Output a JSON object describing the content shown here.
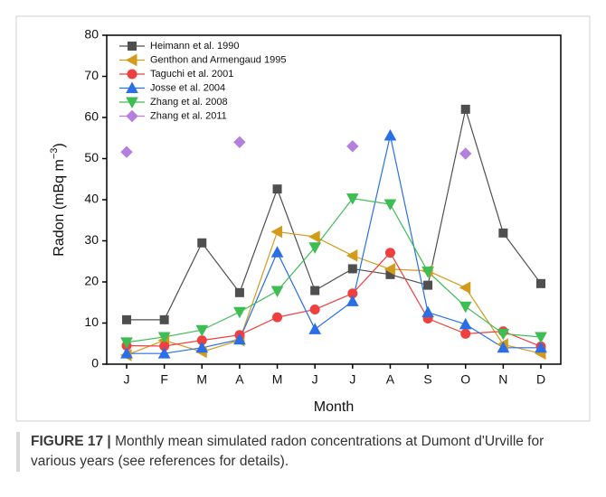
{
  "chart_data": {
    "type": "line",
    "xlabel": "Month",
    "ylabel_parts": [
      "Radon (mBq m",
      "−3",
      ")"
    ],
    "categories": [
      "J",
      "F",
      "M",
      "A",
      "M",
      "J",
      "J",
      "A",
      "S",
      "O",
      "N",
      "D"
    ],
    "ylim": [
      0,
      80
    ],
    "yticks": [
      0,
      10,
      20,
      30,
      40,
      50,
      60,
      70,
      80
    ],
    "legend": "upper-left",
    "series": [
      {
        "name": "Heimann et al. 1990",
        "color": "#4f4f4f",
        "marker": "square",
        "line": true,
        "values": [
          10.8,
          10.8,
          29.5,
          17.4,
          42.6,
          17.9,
          23.2,
          21.8,
          19.2,
          62,
          31.9,
          19.6
        ]
      },
      {
        "name": "Genthon and Armengaud 1995",
        "color": "#d39b1c",
        "marker": "triangle-left",
        "line": true,
        "values": [
          2.2,
          5.8,
          3.0,
          5.8,
          32.2,
          31,
          26.4,
          23.1,
          22.7,
          18.6,
          4.8,
          2.6
        ]
      },
      {
        "name": "Taguchi et al. 2001",
        "color": "#ef3f3f",
        "marker": "circle",
        "line": true,
        "values": [
          4.5,
          4.4,
          5.8,
          7.1,
          11.4,
          13.3,
          17.2,
          27.1,
          11.1,
          7.4,
          8,
          4.3
        ]
      },
      {
        "name": "Josse et al. 2004",
        "color": "#2a6fe6",
        "marker": "triangle-up",
        "line": true,
        "values": [
          2.6,
          2.6,
          4.0,
          6.0,
          27.2,
          8.5,
          15.3,
          55.6,
          12.6,
          9.7,
          4.0,
          4.0
        ]
      },
      {
        "name": "Zhang et al. 2008",
        "color": "#3dbd52",
        "marker": "triangle-down",
        "line": true,
        "values": [
          5.3,
          6.6,
          8.3,
          12.7,
          17.8,
          28.4,
          40.3,
          38.9,
          22.5,
          14.0,
          7.4,
          6.6
        ]
      },
      {
        "name": "Zhang et al. 2011",
        "color": "#b57fe0",
        "marker": "diamond",
        "line": false,
        "values": [
          51.6,
          null,
          null,
          54,
          null,
          null,
          53,
          null,
          null,
          51.2,
          null,
          null
        ]
      }
    ]
  },
  "caption": {
    "label": "FIGURE 17 |",
    "text": "Monthly mean simulated radon concentrations at Dumont d'Urville for various years (see references for details)."
  }
}
